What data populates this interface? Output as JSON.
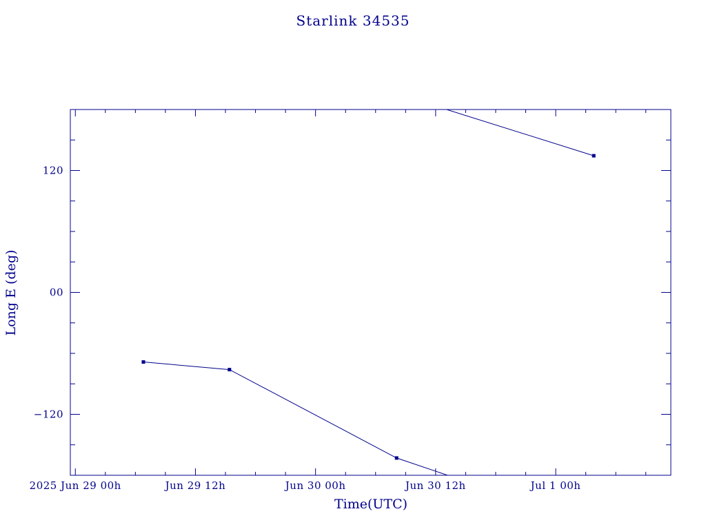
{
  "chart_data": {
    "type": "line",
    "title": "Starlink 34535",
    "xlabel": "Time(UTC)",
    "ylabel": "Long E (deg)",
    "x_unit": "hours",
    "xlim": [
      -24.5,
      35.5
    ],
    "ylim": [
      -180,
      180
    ],
    "grid": false,
    "colors": {
      "axis": "#00008b",
      "line": "#00008b"
    },
    "x_ticks": [
      {
        "value": -24,
        "label": "2025 Jun 29  00h"
      },
      {
        "value": -12,
        "label": "Jun 29  12h"
      },
      {
        "value": 0,
        "label": "Jun 30  00h"
      },
      {
        "value": 12,
        "label": "Jun 30  12h"
      },
      {
        "value": 24,
        "label": "Jul  1  00h"
      }
    ],
    "y_ticks": [
      {
        "value": 120,
        "label": "120"
      },
      {
        "value": 0,
        "label": "00"
      },
      {
        "value": -120,
        "label": "−120"
      }
    ],
    "series": [
      {
        "values": [
          {
            "x": -17.2,
            "y": -68.5,
            "marker": true
          },
          {
            "x": -8.6,
            "y": -76,
            "marker": true
          },
          {
            "x": 8.1,
            "y": -163,
            "marker": true
          },
          {
            "x": 13.5,
            "y": -181
          }
        ]
      },
      {
        "values": [
          {
            "x": 13.1,
            "y": 180
          },
          {
            "x": 27.8,
            "y": 134.5,
            "marker": true
          }
        ]
      }
    ]
  }
}
